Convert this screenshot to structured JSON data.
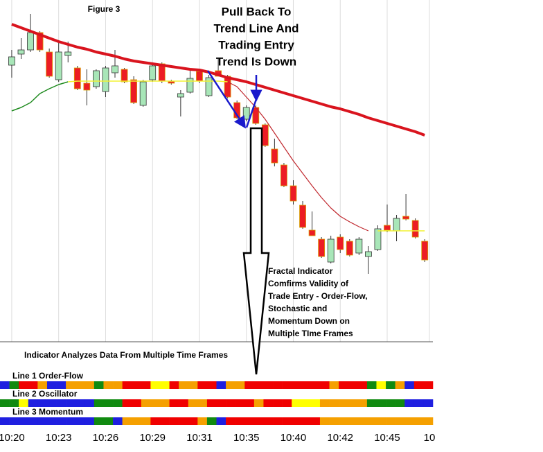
{
  "chart_data": {
    "type": "candlestick",
    "title": "Figure 3",
    "annotations": [
      "Pull Back To",
      "Trend Line And",
      "Trading Entry",
      "Trend Is Down"
    ],
    "note_lines": [
      "Fractal Indicator",
      "Comfirms Validity of",
      "Trade Entry - Order-Flow,",
      "Stochastic and",
      "Momentum Down on",
      "Multiple TIme Frames"
    ],
    "indicator_title": "Indicator Analyzes Data From Multiple Time Frames",
    "open": [
      396,
      412,
      418,
      443,
      415,
      375,
      410,
      392,
      370,
      365,
      358,
      385,
      390,
      375,
      338,
      375,
      398,
      373,
      350,
      357,
      387,
      352,
      388,
      380,
      342,
      318,
      335,
      310,
      275,
      252,
      222,
      194,
      158,
      145,
      112,
      148,
      142,
      125,
      120,
      130,
      165,
      157,
      178,
      172,
      142
    ],
    "high": [
      418,
      435,
      470,
      445,
      420,
      430,
      430,
      395,
      390,
      390,
      395,
      418,
      392,
      380,
      375,
      400,
      400,
      375,
      360,
      390,
      390,
      382,
      405,
      382,
      345,
      338,
      338,
      312,
      290,
      255,
      230,
      200,
      185,
      148,
      150,
      152,
      145,
      148,
      135,
      165,
      195,
      180,
      210,
      175,
      145
    ],
    "low": [
      378,
      405,
      415,
      415,
      378,
      372,
      400,
      360,
      338,
      362,
      350,
      378,
      370,
      340,
      336,
      372,
      370,
      368,
      322,
      355,
      370,
      350,
      380,
      348,
      318,
      315,
      310,
      278,
      250,
      220,
      195,
      160,
      150,
      118,
      110,
      125,
      120,
      122,
      95,
      128,
      155,
      142,
      172,
      146,
      112
    ],
    "close": [
      408,
      418,
      443,
      418,
      380,
      415,
      415,
      362,
      360,
      388,
      392,
      395,
      372,
      342,
      372,
      395,
      373,
      370,
      355,
      377,
      373,
      378,
      380,
      350,
      320,
      335,
      312,
      280,
      255,
      222,
      200,
      162,
      150,
      120,
      145,
      130,
      122,
      145,
      127,
      160,
      158,
      175,
      174,
      148,
      115
    ],
    "up_color": "#a8e6b8",
    "down_color": "#ec1c24",
    "lines": [
      {
        "color": "#d9141e",
        "width": 4,
        "values": [
          455,
          450,
          445,
          440,
          435,
          430,
          426,
          422,
          419,
          415,
          412,
          409,
          405,
          402,
          400,
          398,
          396,
          394,
          392,
          390,
          389,
          386,
          382,
          378,
          375,
          372,
          368,
          364,
          360,
          356,
          352,
          348,
          344,
          340,
          336,
          333,
          329,
          325,
          320,
          316,
          312,
          308,
          304,
          300,
          295
        ]
      },
      {
        "color": "#1e8a1e",
        "width": 1.5,
        "values": [
          330,
          335,
          342,
          355,
          362,
          368,
          372,
          null,
          null,
          null,
          null,
          null,
          null,
          null,
          null,
          null,
          null,
          null,
          null,
          null,
          null,
          null,
          null,
          null,
          null,
          null,
          null,
          null,
          null,
          null,
          null,
          null,
          null,
          null,
          null,
          null,
          null,
          null,
          null,
          null,
          null,
          null,
          null,
          null,
          null
        ]
      },
      {
        "color": "#f2f230",
        "width": 1.5,
        "values": [
          null,
          null,
          null,
          null,
          null,
          null,
          372,
          373,
          373,
          373,
          373,
          373,
          373,
          373,
          373,
          373,
          373,
          373,
          373,
          373,
          373,
          373,
          373,
          372,
          null,
          null,
          null,
          null,
          null,
          null,
          null,
          null,
          null,
          null,
          null,
          null,
          null,
          null,
          null,
          157,
          157,
          157,
          157,
          157,
          157
        ]
      },
      {
        "color": "#c0282e",
        "width": 1.2,
        "values": [
          null,
          null,
          null,
          null,
          null,
          null,
          null,
          null,
          null,
          null,
          null,
          null,
          null,
          null,
          null,
          null,
          null,
          null,
          null,
          null,
          null,
          null,
          null,
          372,
          365,
          350,
          335,
          318,
          298,
          278,
          258,
          240,
          222,
          205,
          190,
          178,
          170,
          163,
          157,
          null,
          null,
          null,
          null,
          null,
          null
        ]
      }
    ],
    "xlim": [
      -1.25,
      44.87
    ],
    "ylim": [
      0,
      490
    ],
    "xticks": [
      {
        "value": 0,
        "label": "10:20"
      },
      {
        "value": 5,
        "label": "10:23"
      },
      {
        "value": 10,
        "label": "10:26"
      },
      {
        "value": 15,
        "label": "10:29"
      },
      {
        "value": 20,
        "label": "10:31"
      },
      {
        "value": 25,
        "label": "10:35"
      },
      {
        "value": 30,
        "label": "10:40"
      },
      {
        "value": 35,
        "label": "10:42"
      },
      {
        "value": 40,
        "label": "10:45"
      },
      {
        "value": 44.5,
        "label": "10"
      }
    ],
    "grid": true,
    "indicators": [
      {
        "name": "Line 1 Order-Flow",
        "colors": [
          "#1f1fe0",
          "#108a10",
          "#f00000",
          "#f00000",
          "#f5a000",
          "#1f1fe0",
          "#1f1fe0",
          "#f5a000",
          "#f5a000",
          "#f5a000",
          "#108a10",
          "#f5a000",
          "#f5a000",
          "#f00000",
          "#f00000",
          "#f00000",
          "#ffff00",
          "#ffff00",
          "#f00000",
          "#f5a000",
          "#f5a000",
          "#f00000",
          "#f00000",
          "#1f1fe0",
          "#f5a000",
          "#f5a000",
          "#f00000",
          "#f00000",
          "#f00000",
          "#f00000",
          "#f00000",
          "#f00000",
          "#f00000",
          "#f00000",
          "#f00000",
          "#f5a000",
          "#f00000",
          "#f00000",
          "#f00000",
          "#108a10",
          "#ffff00",
          "#108a10",
          "#f5a000",
          "#1f1fe0",
          "#f00000",
          "#f00000"
        ]
      },
      {
        "name": "Line 2 Oscillator",
        "colors": [
          "#108a10",
          "#108a10",
          "#ffff00",
          "#1f1fe0",
          "#1f1fe0",
          "#1f1fe0",
          "#1f1fe0",
          "#1f1fe0",
          "#1f1fe0",
          "#1f1fe0",
          "#108a10",
          "#108a10",
          "#108a10",
          "#f00000",
          "#f00000",
          "#f5a000",
          "#f5a000",
          "#f5a000",
          "#f00000",
          "#f00000",
          "#f5a000",
          "#f5a000",
          "#f00000",
          "#f00000",
          "#f00000",
          "#f00000",
          "#f00000",
          "#f5a000",
          "#f00000",
          "#f00000",
          "#f00000",
          "#ffff00",
          "#ffff00",
          "#ffff00",
          "#f5a000",
          "#f5a000",
          "#f5a000",
          "#f5a000",
          "#f5a000",
          "#108a10",
          "#108a10",
          "#108a10",
          "#108a10",
          "#1f1fe0",
          "#1f1fe0",
          "#1f1fe0"
        ]
      },
      {
        "name": "Line 3 Momentum",
        "colors": [
          "#1f1fe0",
          "#1f1fe0",
          "#1f1fe0",
          "#1f1fe0",
          "#1f1fe0",
          "#1f1fe0",
          "#1f1fe0",
          "#1f1fe0",
          "#1f1fe0",
          "#1f1fe0",
          "#108a10",
          "#108a10",
          "#1f1fe0",
          "#f5a000",
          "#f5a000",
          "#f5a000",
          "#f00000",
          "#f00000",
          "#f00000",
          "#f00000",
          "#f00000",
          "#f5a000",
          "#108a10",
          "#1f1fe0",
          "#f00000",
          "#f00000",
          "#f00000",
          "#f00000",
          "#f00000",
          "#f00000",
          "#f00000",
          "#f00000",
          "#f00000",
          "#f00000",
          "#f5a000",
          "#f5a000",
          "#f5a000",
          "#f5a000",
          "#f5a000",
          "#f5a000",
          "#f5a000",
          "#f5a000",
          "#f5a000",
          "#f5a000",
          "#f5a000",
          "#f5a000"
        ]
      }
    ]
  }
}
